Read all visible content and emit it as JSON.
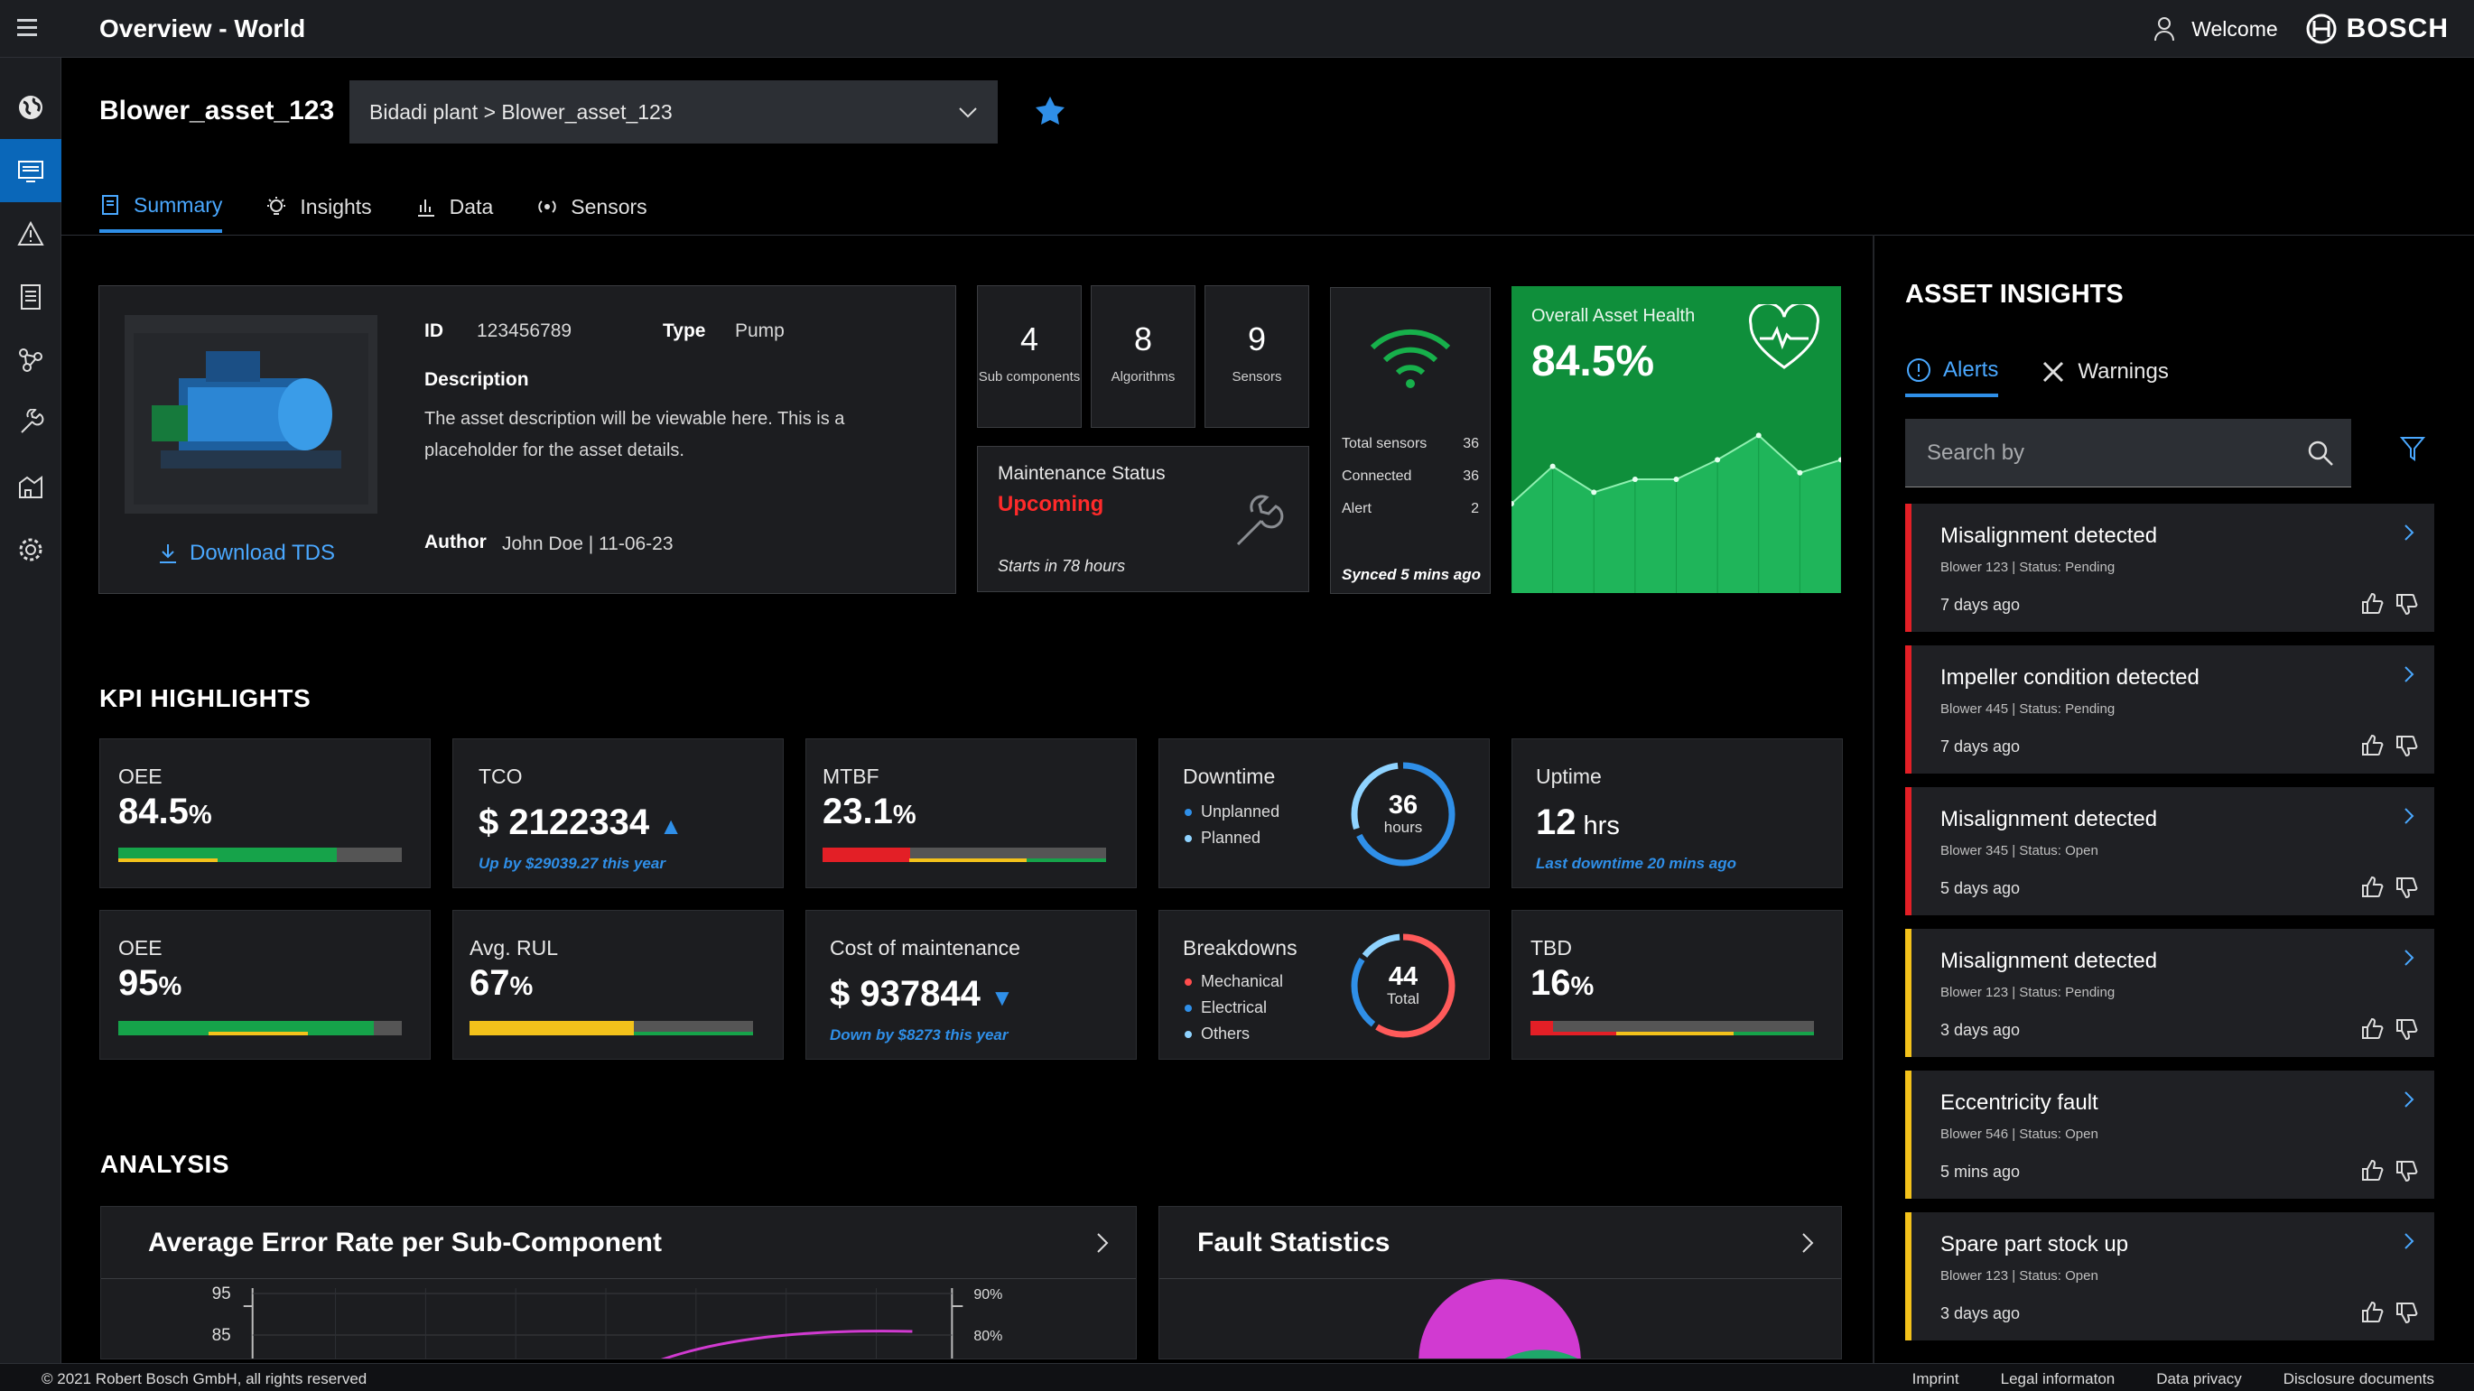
{
  "app": {
    "title": "Overview - World",
    "welcome": "Welcome",
    "brand": "BOSCH"
  },
  "sidebar": {
    "items": [
      "globe",
      "dashboard",
      "alerts",
      "reports",
      "network",
      "tools",
      "plant",
      "settings"
    ]
  },
  "asset": {
    "name": "Blower_asset_123",
    "path": "Bidadi plant > Blower_asset_123",
    "id_label": "ID",
    "id": "123456789",
    "type_label": "Type",
    "type": "Pump",
    "desc_label": "Description",
    "description": "The asset description will be viewable here. This is a placeholder for the asset details.",
    "author_label": "Author",
    "author": "John Doe | 11-06-23",
    "download": "Download TDS"
  },
  "tabs": [
    "Summary",
    "Insights",
    "Data",
    "Sensors"
  ],
  "counters": [
    {
      "num": "4",
      "label": "Sub components"
    },
    {
      "num": "8",
      "label": "Algorithms"
    },
    {
      "num": "9",
      "label": "Sensors"
    }
  ],
  "maintenance": {
    "title": "Maintenance Status",
    "status": "Upcoming",
    "starts": "Starts in 78 hours"
  },
  "sensors": {
    "rows": [
      {
        "label": "Total sensors",
        "value": "36"
      },
      {
        "label": "Connected",
        "value": "36"
      },
      {
        "label": "Alert",
        "value": "2"
      }
    ],
    "synced": "Synced 5 mins ago"
  },
  "health": {
    "title": "Overall Asset Health",
    "value": "84.5%",
    "trend": [
      0.55,
      0.78,
      0.62,
      0.7,
      0.7,
      0.82,
      0.97,
      0.74,
      0.82
    ]
  },
  "kpi": {
    "title": "KPI HIGHLIGHTS",
    "oee1": {
      "label": "OEE",
      "value": "84.5",
      "unit": "%",
      "progress": 0.77
    },
    "tco": {
      "label": "TCO",
      "value": "$ 2122334",
      "sub": "Up by $29039.27 this year"
    },
    "mtbf": {
      "label": "MTBF",
      "value": "23.1",
      "unit": "%",
      "progress": 0.31
    },
    "downtime": {
      "label": "Downtime",
      "legend": [
        "Unplanned",
        "Planned"
      ],
      "value": "36",
      "unit": "hours"
    },
    "uptime": {
      "label": "Uptime",
      "value": "12",
      "unit": " hrs",
      "sub": "Last downtime 20 mins ago"
    },
    "oee2": {
      "label": "OEE",
      "value": "95",
      "unit": "%",
      "progress": 0.9
    },
    "rul": {
      "label": "Avg. RUL",
      "value": "67",
      "unit": "%",
      "progress": 0.58
    },
    "com": {
      "label": "Cost of maintenance",
      "value": "$ 937844",
      "sub": "Down by $8273 this year"
    },
    "breakdowns": {
      "label": "Breakdowns",
      "legend": [
        "Mechanical",
        "Electrical",
        "Others"
      ],
      "value": "44",
      "unit": "Total"
    },
    "tbd": {
      "label": "TBD",
      "value": "16",
      "unit": "%",
      "progress": 0.08
    }
  },
  "analysis": {
    "title": "ANALYSIS",
    "error_rate": "Average Error Rate per Sub-Component",
    "fault_stats": "Fault Statistics",
    "y_ticks": [
      "95",
      "85"
    ],
    "y2_ticks": [
      "90%",
      "80%"
    ]
  },
  "insights": {
    "title": "ASSET INSIGHTS",
    "tabs": [
      "Alerts",
      "Warnings"
    ],
    "search_placeholder": "Search by",
    "alerts": [
      {
        "title": "Misalignment detected",
        "meta": "Blower 123 | Status: Pending",
        "time": "7 days ago",
        "severity": "red"
      },
      {
        "title": "Impeller condition detected",
        "meta": "Blower 445 | Status: Pending",
        "time": "7 days ago",
        "severity": "red"
      },
      {
        "title": "Misalignment detected",
        "meta": "Blower 345 | Status: Open",
        "time": "5 days ago",
        "severity": "red"
      },
      {
        "title": "Misalignment detected",
        "meta": "Blower 123 | Status: Pending",
        "time": "3 days ago",
        "severity": "yellow"
      },
      {
        "title": "Eccentricity fault",
        "meta": "Blower 546 | Status: Open",
        "time": "5 mins ago",
        "severity": "yellow"
      },
      {
        "title": "Spare part stock up",
        "meta": "Blower 123 | Status: Open",
        "time": "3 days ago",
        "severity": "yellow"
      }
    ]
  },
  "footer": {
    "copyright": "© 2021 Robert Bosch GmbH, all rights reserved",
    "links": [
      "Imprint",
      "Legal informaton",
      "Data privacy",
      "Disclosure documents"
    ]
  }
}
